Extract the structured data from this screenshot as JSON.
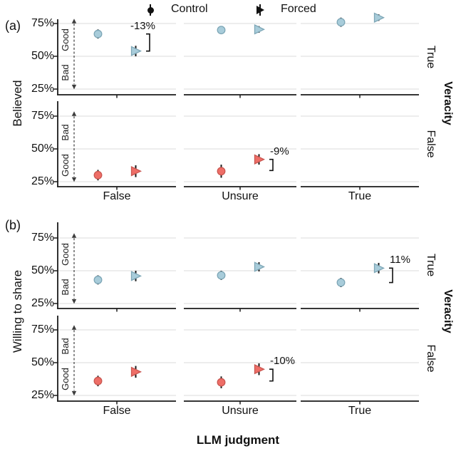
{
  "figure": {
    "panel_a_tag": "(a)",
    "panel_b_tag": "(b)",
    "legend": {
      "items": [
        {
          "label": "Control",
          "marker": "circle"
        },
        {
          "label": "Forced",
          "marker": "triangle-right"
        }
      ]
    },
    "colors": {
      "blue_fill": "#a8ccda",
      "blue_stroke": "#7da6b6",
      "red_fill": "#ee6e67",
      "red_stroke": "#c95650",
      "errorbar": "#1a1a1a",
      "axis": "#1a1a1a",
      "gridline": "#e7e7e7",
      "annotation": "#111111",
      "direction_arrow": "#3d3d3d"
    }
  },
  "chart_data": {
    "type": "scatter",
    "title": "",
    "xlabel": "LLM judgment",
    "x_categories": [
      "False",
      "Unsure",
      "True"
    ],
    "y_tick_labels": [
      "75%",
      "50%",
      "25%"
    ],
    "y_tick_values": [
      75,
      50,
      25
    ],
    "ylim_note": "percent scale, gridlines at 25/50/75",
    "legend_position": "top",
    "facet_col_title": "Veracity",
    "panels": [
      {
        "tag": "(a)",
        "ylabel": "Believed"
      },
      {
        "tag": "(b)",
        "ylabel": "Willing to share"
      }
    ],
    "rows": [
      {
        "panel": "(a)",
        "facet_label": "True",
        "palette": "blue",
        "direction_top": "Good",
        "direction_bottom": "Bad",
        "series": [
          {
            "name": "Control",
            "marker": "circle",
            "values": [
              67,
              70,
              76
            ],
            "err": [
              3.5,
              2.5,
              3.5
            ]
          },
          {
            "name": "Forced",
            "marker": "triangle-right",
            "values": [
              54,
              70.5,
              79.5
            ],
            "err": [
              4,
              2.5,
              2.5
            ]
          }
        ],
        "annotation": {
          "label": "-13%",
          "category": "False",
          "from_value": 67,
          "to_value": 54,
          "label_pos": "above-left"
        }
      },
      {
        "panel": "(a)",
        "facet_label": "False",
        "palette": "red",
        "direction_top": "Bad",
        "direction_bottom": "Good",
        "series": [
          {
            "name": "Control",
            "marker": "circle",
            "values": [
              30,
              33,
              null
            ],
            "err": [
              4,
              5,
              null
            ]
          },
          {
            "name": "Forced",
            "marker": "triangle-right",
            "values": [
              33,
              42,
              null
            ],
            "err": [
              4.5,
              4,
              null
            ]
          }
        ],
        "annotation": {
          "label": "-9%",
          "category": "Unsure",
          "from_value": 42,
          "to_value": 33.5,
          "label_pos": "above-right"
        }
      },
      {
        "panel": "(b)",
        "facet_label": "True",
        "palette": "blue",
        "direction_top": "Good",
        "direction_bottom": "Bad",
        "series": [
          {
            "name": "Control",
            "marker": "circle",
            "values": [
              43,
              46.5,
              41
            ],
            "err": [
              3.5,
              3.5,
              3.5
            ]
          },
          {
            "name": "Forced",
            "marker": "triangle-right",
            "values": [
              46,
              53,
              52
            ],
            "err": [
              4,
              3.5,
              4
            ]
          }
        ],
        "annotation": {
          "label": "11%",
          "category": "True",
          "from_value": 52,
          "to_value": 41,
          "label_pos": "above-right"
        }
      },
      {
        "panel": "(b)",
        "facet_label": "False",
        "palette": "red",
        "direction_top": "Bad",
        "direction_bottom": "Good",
        "series": [
          {
            "name": "Control",
            "marker": "circle",
            "values": [
              36,
              35,
              null
            ],
            "err": [
              4,
              4.5,
              null
            ]
          },
          {
            "name": "Forced",
            "marker": "triangle-right",
            "values": [
              43,
              45,
              null
            ],
            "err": [
              4.5,
              4.5,
              null
            ]
          }
        ],
        "annotation": {
          "label": "-10%",
          "category": "Unsure",
          "from_value": 45,
          "to_value": 36,
          "label_pos": "above-right"
        }
      }
    ]
  }
}
